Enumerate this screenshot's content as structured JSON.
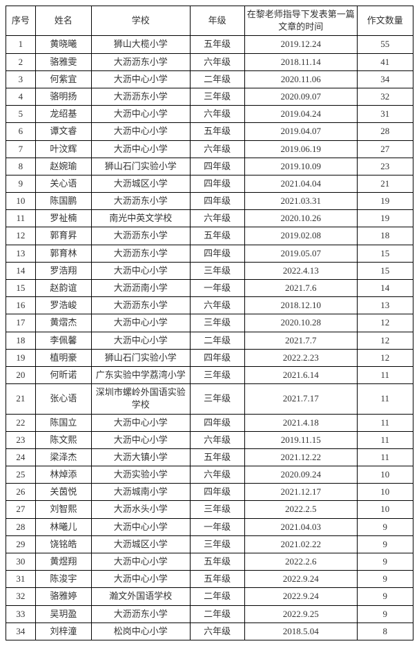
{
  "table": {
    "columns": [
      {
        "key": "seq",
        "label": "序号",
        "class": "col-seq"
      },
      {
        "key": "name",
        "label": "姓名",
        "class": "col-name"
      },
      {
        "key": "school",
        "label": "学校",
        "class": "col-school"
      },
      {
        "key": "grade",
        "label": "年级",
        "class": "col-grade"
      },
      {
        "key": "date",
        "label": "在黎老师指导下发表第一篇文章的时间",
        "class": "col-date"
      },
      {
        "key": "count",
        "label": "作文数量",
        "class": "col-count"
      }
    ],
    "rows": [
      {
        "seq": "1",
        "name": "黄晓曦",
        "school": "狮山大榄小学",
        "grade": "五年级",
        "date": "2019.12.24",
        "count": "55"
      },
      {
        "seq": "2",
        "name": "骆雅雯",
        "school": "大沥沥东小学",
        "grade": "六年级",
        "date": "2018.11.14",
        "count": "41"
      },
      {
        "seq": "3",
        "name": "何紫宜",
        "school": "大沥中心小学",
        "grade": "二年级",
        "date": "2020.11.06",
        "count": "34"
      },
      {
        "seq": "4",
        "name": "骆明扬",
        "school": "大沥沥东小学",
        "grade": "三年级",
        "date": "2020.09.07",
        "count": "32"
      },
      {
        "seq": "5",
        "name": "龙绍基",
        "school": "大沥中心小学",
        "grade": "六年级",
        "date": "2019.04.24",
        "count": "31"
      },
      {
        "seq": "6",
        "name": "谭文睿",
        "school": "大沥中心小学",
        "grade": "五年级",
        "date": "2019.04.07",
        "count": "28"
      },
      {
        "seq": "7",
        "name": "叶汶辉",
        "school": "大沥中心小学",
        "grade": "六年级",
        "date": "2019.06.19",
        "count": "27"
      },
      {
        "seq": "8",
        "name": "赵婉瑜",
        "school": "狮山石门实验小学",
        "grade": "四年级",
        "date": "2019.10.09",
        "count": "23"
      },
      {
        "seq": "9",
        "name": "关心语",
        "school": "大沥城区小学",
        "grade": "四年级",
        "date": "2021.04.04",
        "count": "21"
      },
      {
        "seq": "10",
        "name": "陈国鹏",
        "school": "大沥沥东小学",
        "grade": "四年级",
        "date": "2021.03.31",
        "count": "19"
      },
      {
        "seq": "11",
        "name": "罗祉楠",
        "school": "南光中英文学校",
        "grade": "六年级",
        "date": "2020.10.26",
        "count": "19"
      },
      {
        "seq": "12",
        "name": "郭育昇",
        "school": "大沥沥东小学",
        "grade": "五年级",
        "date": "2019.02.08",
        "count": "18"
      },
      {
        "seq": "13",
        "name": "郭育林",
        "school": "大沥沥东小学",
        "grade": "四年级",
        "date": "2019.05.07",
        "count": "15"
      },
      {
        "seq": "14",
        "name": "罗浩翔",
        "school": "大沥中心小学",
        "grade": "三年级",
        "date": "2022.4.13",
        "count": "15"
      },
      {
        "seq": "15",
        "name": "赵韵谊",
        "school": "大沥沥南小学",
        "grade": "一年级",
        "date": "2021.7.6",
        "count": "14"
      },
      {
        "seq": "16",
        "name": "罗浩峻",
        "school": "大沥沥东小学",
        "grade": "六年级",
        "date": "2018.12.10",
        "count": "13"
      },
      {
        "seq": "17",
        "name": "黄熠杰",
        "school": "大沥中心小学",
        "grade": "三年级",
        "date": "2020.10.28",
        "count": "12"
      },
      {
        "seq": "18",
        "name": "李佩馨",
        "school": "大沥中心小学",
        "grade": "二年级",
        "date": "2021.7.7",
        "count": "12"
      },
      {
        "seq": "19",
        "name": "植明豪",
        "school": "狮山石门实验小学",
        "grade": "四年级",
        "date": "2022.2.23",
        "count": "12"
      },
      {
        "seq": "20",
        "name": "何昕诺",
        "school": "广东实验中学荔湾小学",
        "grade": "三年级",
        "date": "2021.6.14",
        "count": "11"
      },
      {
        "seq": "21",
        "name": "张心语",
        "school": "深圳市螺岭外国语实验学校",
        "grade": "三年级",
        "date": "2021.7.17",
        "count": "11"
      },
      {
        "seq": "22",
        "name": "陈国立",
        "school": "大沥中心小学",
        "grade": "四年级",
        "date": "2021.4.18",
        "count": "11"
      },
      {
        "seq": "23",
        "name": "陈文熙",
        "school": "大沥中心小学",
        "grade": "六年级",
        "date": "2019.11.15",
        "count": "11"
      },
      {
        "seq": "24",
        "name": "梁泽杰",
        "school": "大沥大镇小学",
        "grade": "五年级",
        "date": "2021.12.22",
        "count": "11"
      },
      {
        "seq": "25",
        "name": "林焯添",
        "school": "大沥实验小学",
        "grade": "六年级",
        "date": "2020.09.24",
        "count": "10"
      },
      {
        "seq": "26",
        "name": "关茵悦",
        "school": "大沥城南小学",
        "grade": "四年级",
        "date": "2021.12.17",
        "count": "10"
      },
      {
        "seq": "27",
        "name": "刘智熙",
        "school": "大沥水头小学",
        "grade": "三年级",
        "date": "2022.2.5",
        "count": "10"
      },
      {
        "seq": "28",
        "name": "林曦儿",
        "school": "大沥中心小学",
        "grade": "一年级",
        "date": "2021.04.03",
        "count": "9"
      },
      {
        "seq": "29",
        "name": "饶铭皓",
        "school": "大沥城区小学",
        "grade": "三年级",
        "date": "2021.02.22",
        "count": "9"
      },
      {
        "seq": "30",
        "name": "黄煜翔",
        "school": "大沥中心小学",
        "grade": "五年级",
        "date": "2022.2.6",
        "count": "9"
      },
      {
        "seq": "31",
        "name": "陈浚宇",
        "school": "大沥中心小学",
        "grade": "五年级",
        "date": "2022.9.24",
        "count": "9"
      },
      {
        "seq": "32",
        "name": "骆雅婷",
        "school": "瀚文外国语学校",
        "grade": "二年级",
        "date": "2022.9.24",
        "count": "9"
      },
      {
        "seq": "33",
        "name": "吴玥盈",
        "school": "大沥沥东小学",
        "grade": "二年级",
        "date": "2022.9.25",
        "count": "9"
      },
      {
        "seq": "34",
        "name": "刘梓潼",
        "school": "松岗中心小学",
        "grade": "六年级",
        "date": "2018.5.04",
        "count": "8"
      }
    ],
    "styling": {
      "border_color": "#000000",
      "text_color": "#333333",
      "font_size": 13,
      "background_color": "#ffffff",
      "font_family": "SimSun"
    }
  }
}
